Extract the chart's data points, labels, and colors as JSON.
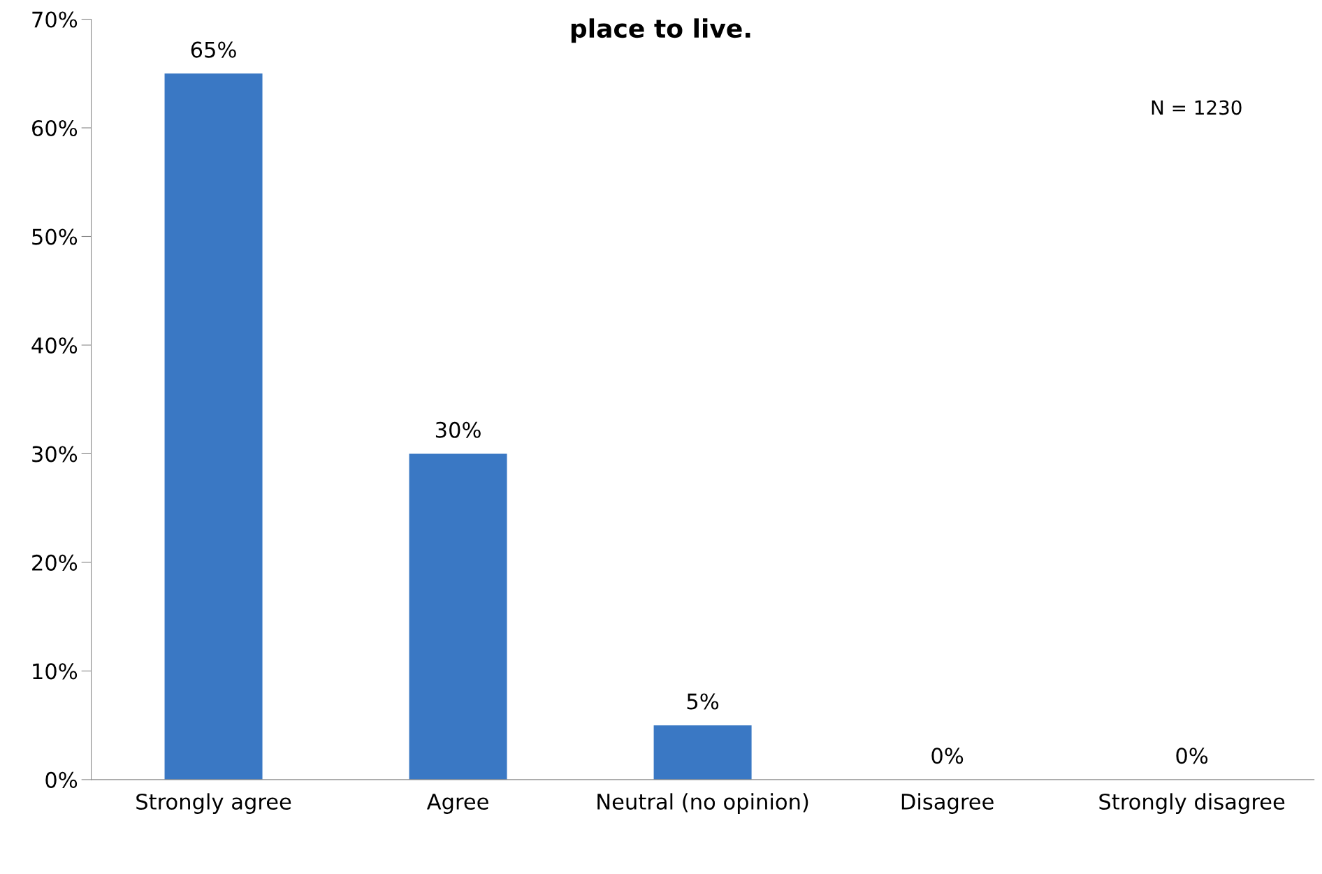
{
  "chart_data": {
    "type": "bar",
    "title": "place to live.",
    "categories": [
      "Strongly agree",
      "Agree",
      "Neutral (no opinion)",
      "Disagree",
      "Strongly disagree"
    ],
    "values": [
      65,
      30,
      5,
      0,
      0
    ],
    "value_labels": [
      "65%",
      "30%",
      "5%",
      "0%",
      "0%"
    ],
    "color": "#3a78c4",
    "ylim": [
      0,
      70
    ],
    "yticks": [
      {
        "value": 0,
        "label": "0%"
      },
      {
        "value": 10,
        "label": "10%"
      },
      {
        "value": 20,
        "label": "20%"
      },
      {
        "value": 30,
        "label": "30%"
      },
      {
        "value": 40,
        "label": "40%"
      },
      {
        "value": 50,
        "label": "50%"
      },
      {
        "value": 60,
        "label": "60%"
      },
      {
        "value": 70,
        "label": "70%"
      }
    ],
    "annotations": [
      "N = 1230"
    ],
    "grid": false,
    "legend": false
  }
}
